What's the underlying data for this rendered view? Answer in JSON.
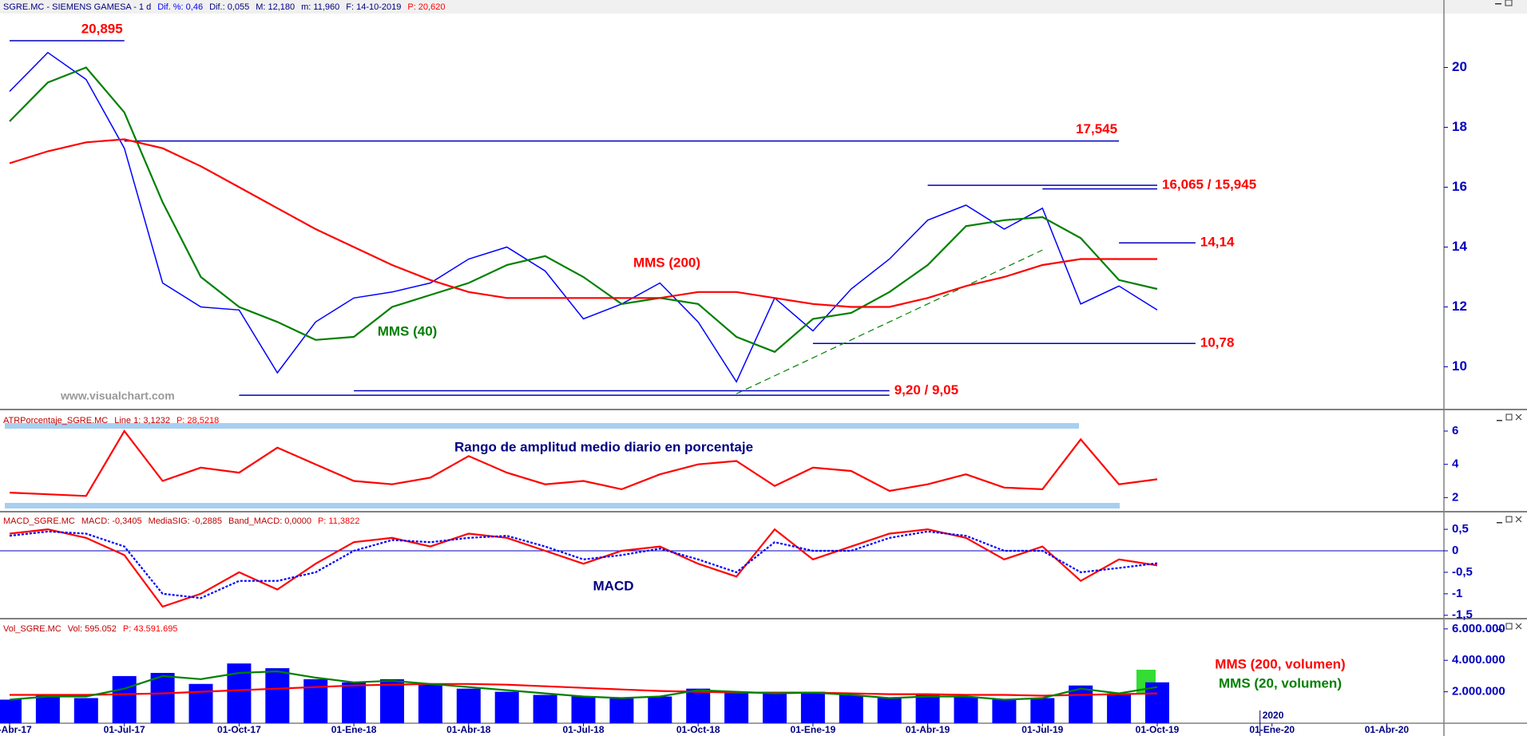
{
  "chart_data": [
    {
      "type": "line",
      "header": [
        {
          "text": "SGRE.MC - SIEMENS GAMESA - 1 d",
          "color": "#000080"
        },
        {
          "text": "Dif. %: 0,46",
          "color": "#0000ff"
        },
        {
          "text": "Dif.: 0,055",
          "color": "#000080"
        },
        {
          "text": "M: 12,180",
          "color": "#000080"
        },
        {
          "text": "m: 11,960",
          "color": "#000080"
        },
        {
          "text": "F: 14-10-2019",
          "color": "#000080"
        },
        {
          "text": "P: 20,620",
          "color": "#ff0000"
        }
      ],
      "x": [
        "2017-04",
        "2017-05",
        "2017-06",
        "2017-07",
        "2017-08",
        "2017-09",
        "2017-10",
        "2017-11",
        "2017-12",
        "2018-01",
        "2018-02",
        "2018-03",
        "2018-04",
        "2018-05",
        "2018-06",
        "2018-07",
        "2018-08",
        "2018-09",
        "2018-10",
        "2018-11",
        "2018-12",
        "2019-01",
        "2019-02",
        "2019-03",
        "2019-04",
        "2019-05",
        "2019-06",
        "2019-07",
        "2019-08",
        "2019-09",
        "2019-10"
      ],
      "xlim": [
        "2017-04",
        "2020-05"
      ],
      "ylim": [
        8.6,
        21.8
      ],
      "yticks": [
        10,
        12,
        14,
        16,
        18,
        20
      ],
      "series": [
        {
          "color": "#0000ff",
          "values": [
            19.2,
            20.5,
            19.6,
            17.3,
            12.8,
            12.0,
            11.9,
            9.8,
            11.5,
            12.3,
            12.5,
            12.8,
            13.6,
            14.0,
            13.2,
            11.6,
            12.1,
            12.8,
            11.5,
            9.5,
            12.3,
            11.2,
            12.6,
            13.6,
            14.9,
            15.4,
            14.6,
            15.3,
            12.1,
            12.7,
            11.9
          ]
        },
        {
          "name": "MMS (40)",
          "color": "#008000",
          "values": [
            18.2,
            19.5,
            20.0,
            18.5,
            15.5,
            13.0,
            12.0,
            11.5,
            10.9,
            11.0,
            12.0,
            12.4,
            12.8,
            13.4,
            13.7,
            13.0,
            12.1,
            12.3,
            12.1,
            11.0,
            10.5,
            11.6,
            11.8,
            12.5,
            13.4,
            14.7,
            14.9,
            15.0,
            14.3,
            12.9,
            12.6
          ]
        },
        {
          "name": "MMS (200)",
          "color": "#ff0000",
          "values": [
            16.8,
            17.2,
            17.5,
            17.6,
            17.3,
            16.7,
            16.0,
            15.3,
            14.6,
            14.0,
            13.4,
            12.9,
            12.5,
            12.3,
            12.3,
            12.3,
            12.3,
            12.3,
            12.5,
            12.5,
            12.3,
            12.1,
            12.0,
            12.0,
            12.3,
            12.7,
            13.0,
            13.4,
            13.6,
            13.6,
            13.6
          ]
        }
      ],
      "levels": [
        {
          "label": "20,895",
          "color": "#ff0000",
          "lines": [
            {
              "value": 20.895,
              "from": "2017-04",
              "to": "2017-07"
            }
          ]
        },
        {
          "label": "17,545",
          "color": "#ff0000",
          "lines": [
            {
              "value": 17.545,
              "from": "2017-07",
              "to": "2019-09"
            }
          ]
        },
        {
          "label": "16,065 / 15,945",
          "color": "#ff0000",
          "lines": [
            {
              "value": 16.065,
              "from": "2019-04",
              "to": "2019-10"
            },
            {
              "value": 15.945,
              "from": "2019-07",
              "to": "2019-10"
            }
          ]
        },
        {
          "label": "14,14",
          "color": "#ff0000",
          "lines": [
            {
              "value": 14.14,
              "from": "2019-09",
              "to": "2019-11"
            }
          ]
        },
        {
          "label": "10,78",
          "color": "#ff0000",
          "lines": [
            {
              "value": 10.78,
              "from": "2019-01",
              "to": "2019-11"
            }
          ]
        },
        {
          "label": "9,20 / 9,05",
          "color": "#ff0000",
          "lines": [
            {
              "value": 9.2,
              "from": "2018-01",
              "to": "2019-03"
            },
            {
              "value": 9.05,
              "from": "2017-10",
              "to": "2019-03"
            }
          ]
        }
      ],
      "trendline": {
        "color": "#008000",
        "x": [
          "2018-11",
          "2019-07"
        ],
        "values": [
          9.1,
          13.9
        ]
      },
      "watermark": "www.visualchart.com"
    },
    {
      "type": "line",
      "header": [
        {
          "text": "ATRPorcentaje_SGRE.MC",
          "color": "#c00000"
        },
        {
          "text": "Line 1: 3,1232",
          "color": "#c00000"
        },
        {
          "text": "P: 28,5218",
          "color": "#ff0000"
        }
      ],
      "x": [
        "2017-04",
        "2017-05",
        "2017-06",
        "2017-07",
        "2017-08",
        "2017-09",
        "2017-10",
        "2017-11",
        "2017-12",
        "2018-01",
        "2018-02",
        "2018-03",
        "2018-04",
        "2018-05",
        "2018-06",
        "2018-07",
        "2018-08",
        "2018-09",
        "2018-10",
        "2018-11",
        "2018-12",
        "2019-01",
        "2019-02",
        "2019-03",
        "2019-04",
        "2019-05",
        "2019-06",
        "2019-07",
        "2019-08",
        "2019-09",
        "2019-10"
      ],
      "xlim": [
        "2017-04",
        "2020-05"
      ],
      "ylim": [
        1.2,
        7.2
      ],
      "yticks": [
        2,
        4,
        6
      ],
      "series": [
        {
          "color": "#ff0000",
          "values": [
            2.3,
            2.2,
            2.1,
            6.0,
            3.0,
            3.8,
            3.5,
            5.0,
            4.0,
            3.0,
            2.8,
            3.2,
            4.5,
            3.5,
            2.8,
            3.0,
            2.5,
            3.4,
            4.0,
            4.2,
            2.7,
            3.8,
            3.6,
            2.4,
            2.8,
            3.4,
            2.6,
            2.5,
            5.5,
            2.8,
            3.1
          ]
        }
      ],
      "annotation": "Rango de amplitud medio diario en porcentaje"
    },
    {
      "type": "line",
      "header": [
        {
          "text": "MACD_SGRE.MC",
          "color": "#c00000"
        },
        {
          "text": "MACD: -0,3405",
          "color": "#c00000"
        },
        {
          "text": "MediaSIG: -0,2885",
          "color": "#c00000"
        },
        {
          "text": "Band_MACD: 0,0000",
          "color": "#c00000"
        },
        {
          "text": "P: 11,3822",
          "color": "#ff0000"
        }
      ],
      "x": [
        "2017-04",
        "2017-05",
        "2017-06",
        "2017-07",
        "2017-08",
        "2017-09",
        "2017-10",
        "2017-11",
        "2017-12",
        "2018-01",
        "2018-02",
        "2018-03",
        "2018-04",
        "2018-05",
        "2018-06",
        "2018-07",
        "2018-08",
        "2018-09",
        "2018-10",
        "2018-11",
        "2018-12",
        "2019-01",
        "2019-02",
        "2019-03",
        "2019-04",
        "2019-05",
        "2019-06",
        "2019-07",
        "2019-08",
        "2019-09",
        "2019-10"
      ],
      "xlim": [
        "2017-04",
        "2020-05"
      ],
      "ylim": [
        -1.56,
        0.91
      ],
      "yticks": [
        {
          "value": 0.5,
          "label": "0,5"
        },
        0,
        {
          "value": -0.5,
          "label": "-0,5"
        },
        -1,
        {
          "value": -1.5,
          "label": "-1,5"
        }
      ],
      "band": 0,
      "series": [
        {
          "name": "MACD",
          "color": "#ff0000",
          "values": [
            0.4,
            0.5,
            0.3,
            -0.1,
            -1.3,
            -1.0,
            -0.5,
            -0.9,
            -0.3,
            0.2,
            0.3,
            0.1,
            0.4,
            0.3,
            0.0,
            -0.3,
            0.0,
            0.1,
            -0.3,
            -0.6,
            0.5,
            -0.2,
            0.1,
            0.4,
            0.5,
            0.3,
            -0.2,
            0.1,
            -0.7,
            -0.2,
            -0.34
          ]
        },
        {
          "color": "#0000ff",
          "dashed": true,
          "values": [
            0.35,
            0.45,
            0.4,
            0.1,
            -1.0,
            -1.1,
            -0.7,
            -0.7,
            -0.5,
            0.0,
            0.25,
            0.2,
            0.3,
            0.35,
            0.1,
            -0.2,
            -0.1,
            0.05,
            -0.2,
            -0.5,
            0.2,
            0.0,
            0.0,
            0.3,
            0.45,
            0.35,
            0.0,
            0.0,
            -0.5,
            -0.4,
            -0.29
          ]
        }
      ]
    },
    {
      "type": "bar",
      "header": [
        {
          "text": "Vol_SGRE.MC",
          "color": "#c00000"
        },
        {
          "text": "Vol: 595.052",
          "color": "#c00000"
        },
        {
          "text": "P: 43.591.695",
          "color": "#ff0000"
        }
      ],
      "x": [
        "2017-04",
        "2017-05",
        "2017-06",
        "2017-07",
        "2017-08",
        "2017-09",
        "2017-10",
        "2017-11",
        "2017-12",
        "2018-01",
        "2018-02",
        "2018-03",
        "2018-04",
        "2018-05",
        "2018-06",
        "2018-07",
        "2018-08",
        "2018-09",
        "2018-10",
        "2018-11",
        "2018-12",
        "2019-01",
        "2019-02",
        "2019-03",
        "2019-04",
        "2019-05",
        "2019-06",
        "2019-07",
        "2019-08",
        "2019-09",
        "2019-10"
      ],
      "xlim": [
        "2017-04",
        "2020-05"
      ],
      "ylim": [
        0,
        6600000
      ],
      "yticks": [
        {
          "value": 2000000,
          "label": "2.000.000"
        },
        {
          "value": 4000000,
          "label": "4.000.000"
        },
        {
          "value": 6000000,
          "label": "6.000.000"
        }
      ],
      "series": [
        {
          "color": "#0000ff",
          "values": [
            1500000,
            1800000,
            1600000,
            3000000,
            3200000,
            2500000,
            3800000,
            3500000,
            2800000,
            2600000,
            2800000,
            2500000,
            2200000,
            2000000,
            1800000,
            1700000,
            1600000,
            1700000,
            2200000,
            2000000,
            1900000,
            2000000,
            1800000,
            1600000,
            1800000,
            1700000,
            1500000,
            1600000,
            2400000,
            1900000,
            2600000
          ]
        },
        {
          "name": "MMS (200, volumen)",
          "type": "line",
          "color": "#ff0000",
          "values": [
            1800000,
            1800000,
            1800000,
            1850000,
            1900000,
            2000000,
            2100000,
            2200000,
            2300000,
            2400000,
            2450000,
            2500000,
            2500000,
            2450000,
            2350000,
            2250000,
            2150000,
            2050000,
            2000000,
            1950000,
            1950000,
            1950000,
            1900000,
            1850000,
            1850000,
            1800000,
            1800000,
            1750000,
            1800000,
            1850000,
            1900000
          ]
        },
        {
          "name": "MMS (20, volumen)",
          "type": "line",
          "color": "#008000",
          "values": [
            1500000,
            1700000,
            1700000,
            2200000,
            3000000,
            2800000,
            3200000,
            3300000,
            2900000,
            2600000,
            2700000,
            2500000,
            2300000,
            2100000,
            1900000,
            1700000,
            1600000,
            1700000,
            2100000,
            2000000,
            1900000,
            1950000,
            1800000,
            1600000,
            1700000,
            1700000,
            1500000,
            1600000,
            2200000,
            1900000,
            2300000
          ]
        }
      ],
      "xticks": [
        {
          "value": "2017-04",
          "label": "01-Abr-17"
        },
        {
          "value": "2017-07",
          "label": "01-Jul-17"
        },
        {
          "value": "2017-10",
          "label": "01-Oct-17"
        },
        {
          "value": "2018-01",
          "label": "01-Ene-18"
        },
        {
          "value": "2018-04",
          "label": "01-Abr-18"
        },
        {
          "value": "2018-07",
          "label": "01-Jul-18"
        },
        {
          "value": "2018-10",
          "label": "01-Oct-18"
        },
        {
          "value": "2019-01",
          "label": "01-Ene-19"
        },
        {
          "value": "2019-04",
          "label": "01-Abr-19"
        },
        {
          "value": "2019-07",
          "label": "01-Jul-19"
        },
        {
          "value": "2019-10",
          "label": "01-Oct-19"
        },
        {
          "value": "2020-01",
          "label": "01-Ene-20"
        },
        {
          "value": "2020-04",
          "label": "01-Abr-20"
        }
      ],
      "year_marker": {
        "value": "2020-01",
        "label": "2020"
      }
    }
  ]
}
